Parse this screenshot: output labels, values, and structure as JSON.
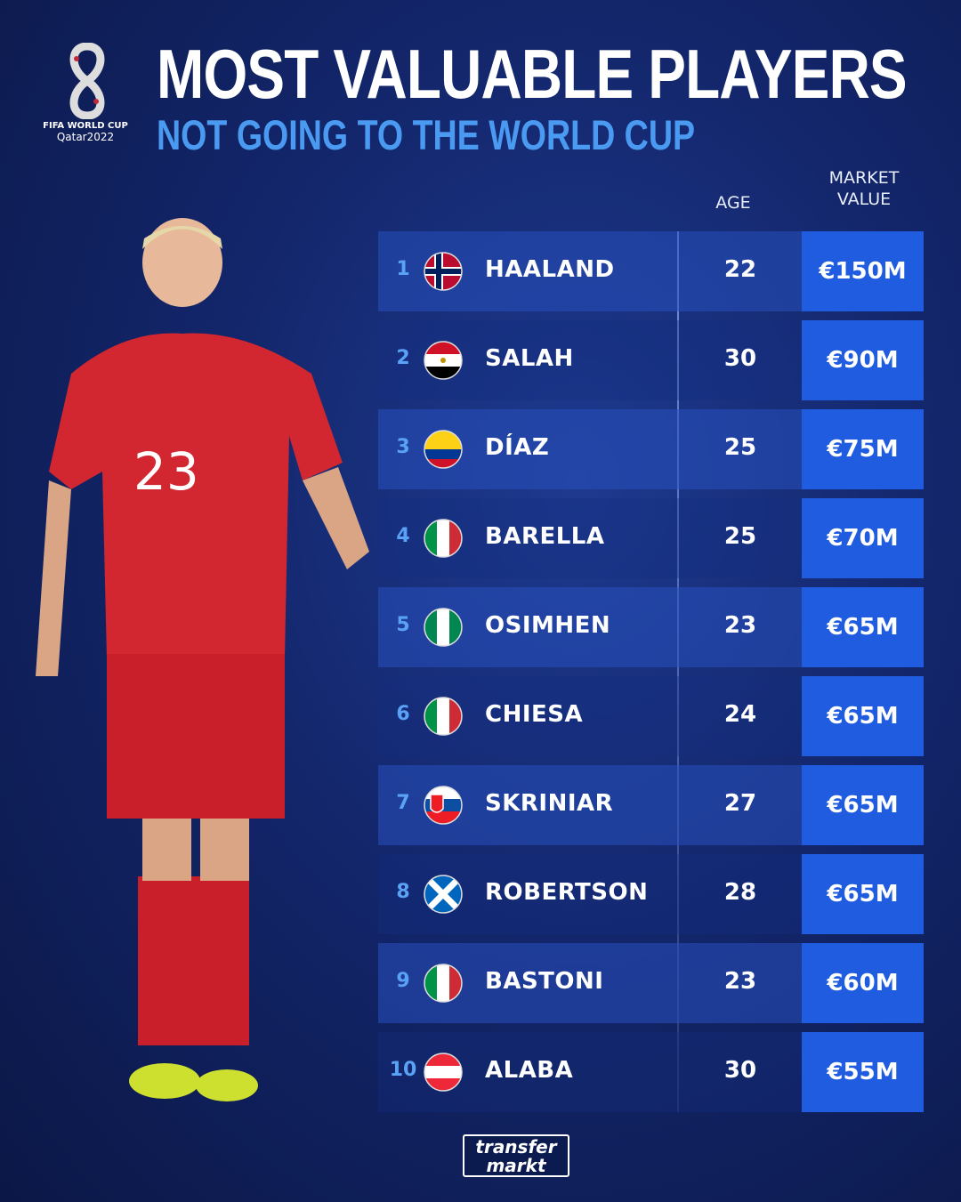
{
  "header": {
    "title": "MOST VALUABLE PLAYERS",
    "subtitle": "NOT GOING TO THE WORLD CUP"
  },
  "logo": {
    "line1": "FIFA WORLD CUP",
    "line2": "Qatar2022"
  },
  "columns": {
    "age": "AGE",
    "market_value_1": "MARKET",
    "market_value_2": "VALUE"
  },
  "rows": [
    {
      "rank": "1",
      "name": "HAALAND",
      "age": "22",
      "value": "€150M",
      "flag": "norway"
    },
    {
      "rank": "2",
      "name": "SALAH",
      "age": "30",
      "value": "€90M",
      "flag": "egypt"
    },
    {
      "rank": "3",
      "name": "DÍAZ",
      "age": "25",
      "value": "€75M",
      "flag": "colombia"
    },
    {
      "rank": "4",
      "name": "BARELLA",
      "age": "25",
      "value": "€70M",
      "flag": "italy"
    },
    {
      "rank": "5",
      "name": "OSIMHEN",
      "age": "23",
      "value": "€65M",
      "flag": "nigeria"
    },
    {
      "rank": "6",
      "name": "CHIESA",
      "age": "24",
      "value": "€65M",
      "flag": "italy"
    },
    {
      "rank": "7",
      "name": "SKRINIAR",
      "age": "27",
      "value": "€65M",
      "flag": "slovakia"
    },
    {
      "rank": "8",
      "name": "ROBERTSON",
      "age": "28",
      "value": "€65M",
      "flag": "scotland"
    },
    {
      "rank": "9",
      "name": "BASTONI",
      "age": "23",
      "value": "€60M",
      "flag": "italy"
    },
    {
      "rank": "10",
      "name": "ALABA",
      "age": "30",
      "value": "€55M",
      "flag": "austria"
    }
  ],
  "player": {
    "shirt_number": "23"
  },
  "footer": {
    "brand_line1": "transfer",
    "brand_line2": "markt"
  },
  "colors": {
    "accent": "#4a9af2",
    "value_box": "#1f5ce0",
    "background": "#13266b",
    "kit": "#d22630"
  }
}
